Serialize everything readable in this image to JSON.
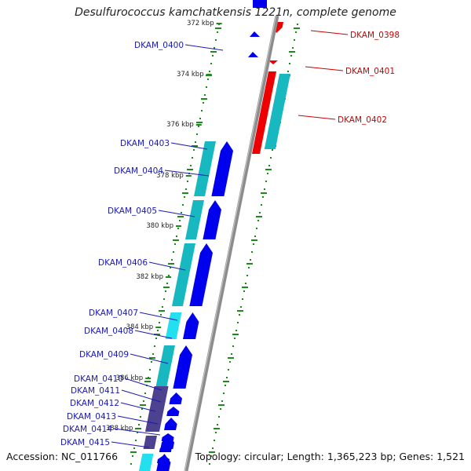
{
  "title": "Desulfurococcus kamchatkensis 1221n, complete genome",
  "footer": {
    "accession": "Accession: NC_011766",
    "summary": "Topology: circular; Length: 1,365,223 bp; Genes: 1,521"
  },
  "colors": {
    "backbone": "#8c8c8c",
    "forward_cds": "#0000ee",
    "reverse_cds": "#ee0000",
    "gene_teal": "#18b8c0",
    "gene_cyan": "#22e0f0",
    "gene_slate": "#4c4290",
    "tick_green": "#1c8a1c",
    "label_blue": "#1a1ab4",
    "label_red": "#cc0000"
  },
  "scale_labels": [
    "372 kbp",
    "374 kbp",
    "376 kbp",
    "378 kbp",
    "380 kbp",
    "382 kbp",
    "384 kbp",
    "386 kbp",
    "388 kbp"
  ],
  "gene_labels": {
    "left": [
      "DKAM_0400",
      "DKAM_0403",
      "DKAM_0404",
      "DKAM_0405",
      "DKAM_0406",
      "DKAM_0407",
      "DKAM_0408",
      "DKAM_0409",
      "DKAM_0410",
      "DKAM_0411",
      "DKAM_0412",
      "DKAM_0413",
      "DKAM_0414",
      "DKAM_0415"
    ],
    "right": [
      "DKAM_0398",
      "DKAM_0401",
      "DKAM_0402"
    ]
  }
}
